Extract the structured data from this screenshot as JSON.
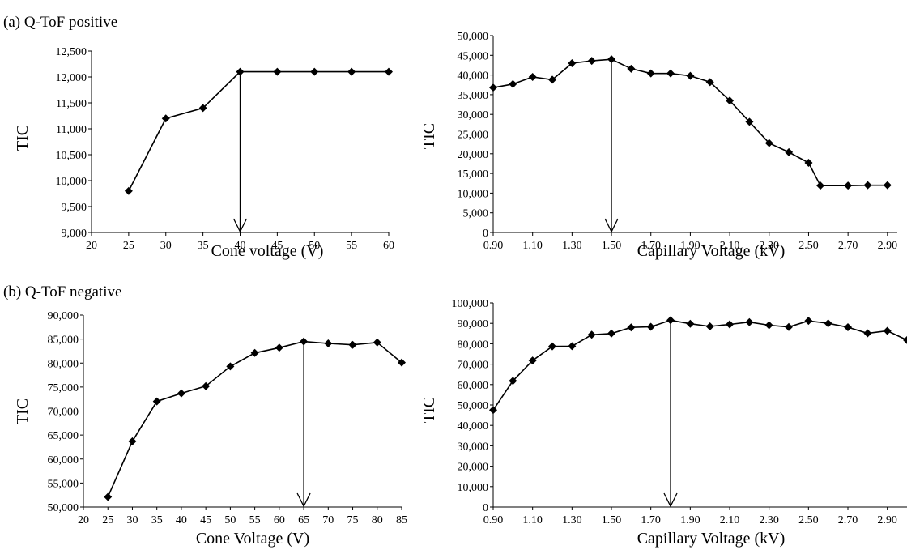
{
  "panel_labels": [
    "(a) Q-ToF positive",
    "(b) Q-ToF negative"
  ],
  "colors": {
    "line": "#000000",
    "marker": "#000000",
    "axis": "#000000"
  },
  "chart_data": [
    {
      "type": "line",
      "panel": "a-left",
      "title": "",
      "xlabel": "Cone voltage (V)",
      "ylabel": "TIC",
      "xlim": [
        20,
        60
      ],
      "ylim": [
        9000,
        12500
      ],
      "x_ticks": [
        20,
        25,
        30,
        35,
        40,
        45,
        50,
        55,
        60
      ],
      "x_tick_labels": [
        "20",
        "25",
        "30",
        "35",
        "40",
        "45",
        "50",
        "55",
        "60"
      ],
      "y_ticks": [
        9000,
        9500,
        10000,
        10500,
        11000,
        11500,
        12000,
        12500
      ],
      "y_tick_labels": [
        "9,000",
        "9,500",
        "10,000",
        "10,500",
        "11,000",
        "11,500",
        "12,000",
        "12,500"
      ],
      "grid": false,
      "marker": "diamond",
      "x": [
        25,
        30,
        35,
        40,
        45,
        50,
        55,
        60
      ],
      "y": [
        9800,
        11200,
        11400,
        12100,
        12100,
        12100,
        12100,
        12100
      ],
      "arrow_at": 40
    },
    {
      "type": "line",
      "panel": "a-right",
      "title": "",
      "xlabel": "Capillary Voltage (kV)",
      "ylabel": "TIC",
      "xlim": [
        0.9,
        2.95
      ],
      "ylim": [
        0,
        50000
      ],
      "x_ticks": [
        0.9,
        1.1,
        1.3,
        1.5,
        1.7,
        1.9,
        2.1,
        2.3,
        2.5,
        2.7,
        2.9
      ],
      "x_tick_labels": [
        "0.90",
        "1.10",
        "1.30",
        "1.50",
        "1.70",
        "1.90",
        "2.10",
        "2.30",
        "2.50",
        "2.70",
        "2.90"
      ],
      "y_ticks": [
        0,
        5000,
        10000,
        15000,
        20000,
        25000,
        30000,
        35000,
        40000,
        45000,
        50000
      ],
      "y_tick_labels": [
        "0",
        "5,000",
        "10,000",
        "15,000",
        "20,000",
        "25,000",
        "30,000",
        "35,000",
        "40,000",
        "45,000",
        "50,000"
      ],
      "grid": false,
      "marker": "diamond",
      "x": [
        0.9,
        1.0,
        1.1,
        1.2,
        1.3,
        1.4,
        1.5,
        1.6,
        1.7,
        1.8,
        1.9,
        2.0,
        2.1,
        2.2,
        2.3,
        2.4,
        2.5,
        2.56,
        2.7,
        2.8,
        2.9
      ],
      "y": [
        36800,
        37700,
        39500,
        38800,
        43000,
        43600,
        44000,
        41600,
        40400,
        40400,
        39800,
        38200,
        33500,
        28100,
        22700,
        20400,
        17700,
        11900,
        11900,
        12000,
        12000
      ],
      "arrow_at": 1.5
    },
    {
      "type": "line",
      "panel": "b-left",
      "title": "",
      "xlabel": "Cone Voltage (V)",
      "ylabel": "TIC",
      "xlim": [
        20,
        85
      ],
      "ylim": [
        50000,
        90000
      ],
      "x_ticks": [
        20,
        25,
        30,
        35,
        40,
        45,
        50,
        55,
        60,
        65,
        70,
        75,
        80,
        85
      ],
      "x_tick_labels": [
        "20",
        "25",
        "30",
        "35",
        "40",
        "45",
        "50",
        "55",
        "60",
        "65",
        "70",
        "75",
        "80",
        "85"
      ],
      "y_ticks": [
        50000,
        55000,
        60000,
        65000,
        70000,
        75000,
        80000,
        85000,
        90000
      ],
      "y_tick_labels": [
        "50,000",
        "55,000",
        "60,000",
        "65,000",
        "70,000",
        "75,000",
        "80,000",
        "85,000",
        "90,000"
      ],
      "grid": false,
      "marker": "diamond",
      "x": [
        25,
        30,
        35,
        40,
        45,
        50,
        55,
        60,
        65,
        70,
        75,
        80,
        85
      ],
      "y": [
        52100,
        63700,
        72000,
        73700,
        75200,
        79300,
        82100,
        83200,
        84500,
        84100,
        83800,
        84300,
        80100
      ],
      "arrow_at": 65
    },
    {
      "type": "line",
      "panel": "b-right",
      "title": "",
      "xlabel": "Capillary Voltage (kV)",
      "ylabel": "TIC",
      "xlim": [
        0.9,
        3.0
      ],
      "ylim": [
        0,
        100000
      ],
      "x_ticks": [
        0.9,
        1.1,
        1.3,
        1.5,
        1.7,
        1.9,
        2.1,
        2.3,
        2.5,
        2.7,
        2.9
      ],
      "x_tick_labels": [
        "0.90",
        "1.10",
        "1.30",
        "1.50",
        "1.70",
        "1.90",
        "2.10",
        "2.30",
        "2.50",
        "2.70",
        "2.90"
      ],
      "y_ticks": [
        0,
        10000,
        20000,
        30000,
        40000,
        50000,
        60000,
        70000,
        80000,
        90000,
        100000
      ],
      "y_tick_labels": [
        "0",
        "10,000",
        "20,000",
        "30,000",
        "40,000",
        "50,000",
        "60,000",
        "70,000",
        "80,000",
        "90,000",
        "100,000"
      ],
      "grid": false,
      "marker": "diamond",
      "x": [
        0.9,
        1.0,
        1.1,
        1.2,
        1.3,
        1.4,
        1.5,
        1.6,
        1.7,
        1.8,
        1.9,
        2.0,
        2.1,
        2.2,
        2.3,
        2.4,
        2.5,
        2.6,
        2.7,
        2.8,
        2.9,
        3.0
      ],
      "y": [
        47500,
        61800,
        71800,
        78700,
        78800,
        84400,
        85000,
        88000,
        88300,
        91500,
        89800,
        88500,
        89500,
        90600,
        89100,
        88200,
        91200,
        90000,
        88100,
        85100,
        86300,
        81800
      ],
      "arrow_at": 1.8
    }
  ]
}
